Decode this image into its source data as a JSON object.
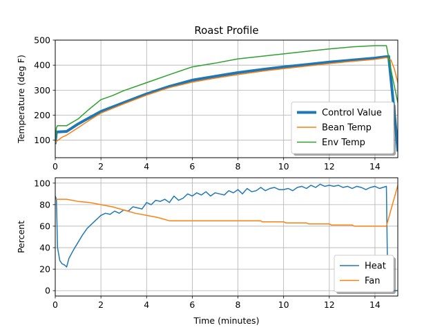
{
  "chart_data": [
    {
      "type": "line",
      "title": "Roast Profile",
      "xlabel": "",
      "ylabel": "Temperature (deg F)",
      "xlim": [
        0,
        15
      ],
      "ylim": [
        30,
        500
      ],
      "xticks": [
        0,
        2,
        4,
        6,
        8,
        10,
        12,
        14
      ],
      "yticks": [
        100,
        200,
        300,
        400,
        500
      ],
      "grid": true,
      "legend": "lower-right",
      "series": [
        {
          "name": "Control Value",
          "color": "#1f77b4",
          "line_width": 4,
          "x": [
            0,
            0.05,
            0.1,
            0.5,
            1,
            1.5,
            2,
            3,
            4,
            5,
            6,
            7,
            8,
            9,
            10,
            11,
            12,
            13,
            14,
            14.6,
            14.75,
            14.9,
            15
          ],
          "y": [
            90,
            133,
            133,
            135,
            165,
            190,
            215,
            250,
            285,
            315,
            340,
            355,
            370,
            382,
            393,
            402,
            412,
            420,
            428,
            435,
            300,
            160,
            60
          ]
        },
        {
          "name": "Bean Temp",
          "color": "#ff7f0e",
          "line_width": 1.5,
          "x": [
            0,
            0.05,
            0.3,
            0.5,
            1,
            1.5,
            2,
            3,
            4,
            5,
            6,
            7,
            8,
            9,
            10,
            11,
            12,
            13,
            14,
            14.5,
            14.7,
            14.85,
            15
          ],
          "y": [
            90,
            95,
            112,
            120,
            150,
            180,
            208,
            245,
            280,
            310,
            332,
            348,
            362,
            375,
            386,
            396,
            406,
            415,
            423,
            430,
            420,
            385,
            330
          ]
        },
        {
          "name": "Env Temp",
          "color": "#2ca02c",
          "line_width": 1.5,
          "x": [
            0,
            0.05,
            0.1,
            0.5,
            1,
            1.5,
            2,
            2.5,
            3,
            4,
            5,
            6,
            7,
            8,
            9,
            10,
            11,
            12,
            13,
            14,
            14.5,
            14.75,
            15
          ],
          "y": [
            100,
            150,
            158,
            158,
            185,
            225,
            262,
            278,
            298,
            330,
            362,
            393,
            408,
            425,
            435,
            445,
            455,
            465,
            473,
            478,
            478,
            360,
            250
          ]
        }
      ]
    },
    {
      "type": "line",
      "title": "",
      "xlabel": "Time (minutes)",
      "ylabel": "Percent",
      "xlim": [
        0,
        15
      ],
      "ylim": [
        -5,
        105
      ],
      "xticks": [
        0,
        2,
        4,
        6,
        8,
        10,
        12,
        14
      ],
      "yticks": [
        0,
        20,
        40,
        60,
        80,
        100
      ],
      "grid": true,
      "legend": "lower-right",
      "series": [
        {
          "name": "Heat",
          "color": "#1f77b4",
          "line_width": 1.5,
          "x": [
            0,
            0.05,
            0.1,
            0.2,
            0.3,
            0.4,
            0.5,
            0.6,
            0.8,
            1,
            1.2,
            1.4,
            1.6,
            1.8,
            2,
            2.2,
            2.4,
            2.6,
            2.8,
            3,
            3.2,
            3.4,
            3.6,
            3.8,
            4,
            4.2,
            4.4,
            4.6,
            4.8,
            5,
            5.2,
            5.4,
            5.6,
            5.8,
            6,
            6.2,
            6.4,
            6.6,
            6.8,
            7,
            7.2,
            7.4,
            7.6,
            7.8,
            8,
            8.2,
            8.4,
            8.6,
            8.8,
            9,
            9.2,
            9.4,
            9.6,
            9.8,
            10,
            10.2,
            10.4,
            10.6,
            10.8,
            11,
            11.2,
            11.4,
            11.6,
            11.8,
            12,
            12.2,
            12.4,
            12.6,
            12.8,
            13,
            13.2,
            13.4,
            13.6,
            13.8,
            14,
            14.2,
            14.5,
            14.55,
            14.6,
            14.8,
            15
          ],
          "y": [
            88,
            85,
            40,
            28,
            25,
            24,
            22,
            30,
            38,
            45,
            52,
            58,
            62,
            66,
            70,
            72,
            71,
            74,
            72,
            75,
            74,
            78,
            77,
            76,
            82,
            80,
            84,
            83,
            85,
            82,
            88,
            84,
            86,
            90,
            88,
            91,
            89,
            92,
            88,
            91,
            90,
            89,
            93,
            91,
            94,
            90,
            95,
            92,
            93,
            96,
            93,
            95,
            96,
            94,
            94,
            95,
            93,
            96,
            97,
            95,
            98,
            96,
            99,
            97,
            98,
            97,
            98,
            96,
            97,
            95,
            97,
            96,
            94,
            96,
            97,
            95,
            97,
            20,
            0,
            0,
            0
          ]
        },
        {
          "name": "Fan",
          "color": "#ff7f0e",
          "line_width": 1.5,
          "x": [
            0,
            0.05,
            0.5,
            1,
            1.5,
            2,
            2.5,
            3,
            3.5,
            4,
            4.5,
            5,
            6,
            7,
            8,
            9,
            9.05,
            10,
            10.1,
            11,
            11.1,
            12,
            12.1,
            13,
            13.1,
            14,
            14.5,
            15
          ],
          "y": [
            85,
            85,
            85,
            83,
            82,
            80,
            78,
            75,
            72,
            70,
            68,
            65,
            65,
            65,
            65,
            65,
            64,
            64,
            63,
            63,
            62,
            62,
            61,
            61,
            60,
            60,
            60,
            98
          ]
        }
      ]
    }
  ]
}
